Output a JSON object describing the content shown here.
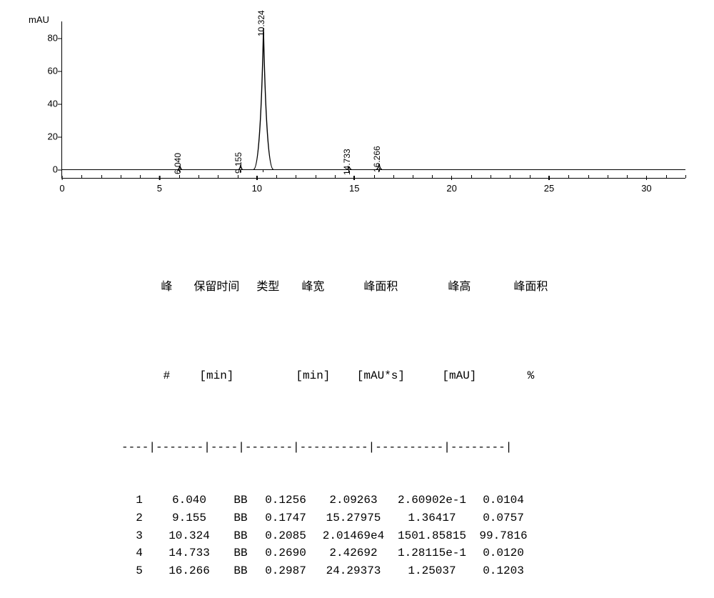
{
  "chart": {
    "type": "chromatogram",
    "ylabel": "mAU",
    "background_color": "#ffffff",
    "axis_color": "#000000",
    "line_color": "#000000",
    "label_fontsize": 12,
    "axis_fontsize": 13,
    "xlim": [
      0,
      32
    ],
    "ylim": [
      -5,
      90
    ],
    "yticks": [
      0,
      20,
      40,
      60,
      80
    ],
    "xticks": [
      0,
      5,
      10,
      15,
      20,
      25,
      30
    ],
    "xtick_minor_step": 1,
    "baseline_y": 0,
    "peaks": [
      {
        "rt": 6.04,
        "height": 2.5,
        "label": "6.040"
      },
      {
        "rt": 9.155,
        "height": 3.0,
        "label": "9.155"
      },
      {
        "rt": 10.324,
        "height": 86.0,
        "label": "10.324"
      },
      {
        "rt": 14.733,
        "height": 2.0,
        "label": "14.733"
      },
      {
        "rt": 16.266,
        "height": 3.5,
        "label": "16.266"
      }
    ]
  },
  "table": {
    "headers_row1": [
      "峰",
      "保留时间",
      "类型",
      "峰宽",
      "峰面积",
      "峰高",
      "峰面积"
    ],
    "headers_row2": [
      "#",
      "[min]",
      "",
      "[min]",
      "[mAU*s]",
      "[mAU]",
      "%"
    ],
    "divider": "----|-------|----|-------|----------|----------|--------|",
    "rows": [
      [
        "1",
        "6.040",
        "BB",
        "0.1256",
        "2.09263",
        "2.60902e-1",
        "0.0104"
      ],
      [
        "2",
        "9.155",
        "BB",
        "0.1747",
        "15.27975",
        "1.36417",
        "0.0757"
      ],
      [
        "3",
        "10.324",
        "BB",
        "0.2085",
        "2.01469e4",
        "1501.85815",
        "99.7816"
      ],
      [
        "4",
        "14.733",
        "BB",
        "0.2690",
        "2.42692",
        "1.28115e-1",
        "0.0120"
      ],
      [
        "5",
        "16.266",
        "BB",
        "0.2987",
        "24.29373",
        "1.25037",
        "0.1203"
      ]
    ]
  }
}
